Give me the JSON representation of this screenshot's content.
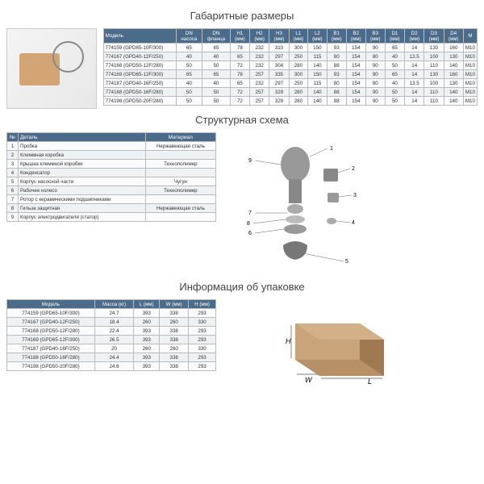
{
  "titles": {
    "dims": "Габаритные размеры",
    "struct": "Структурная схема",
    "pack": "Информация об упаковке"
  },
  "dimsTable": {
    "head": [
      "Модель",
      "DN насоса",
      "DN фланца",
      "H1 (мм)",
      "H2 (мм)",
      "H3 (мм)",
      "L1 (мм)",
      "L2 (мм)",
      "B1 (мм)",
      "B2 (мм)",
      "B3 (мм)",
      "D1 (мм)",
      "D2 (мм)",
      "D3 (мм)",
      "D4 (мм)",
      "M"
    ],
    "rows": [
      [
        "774159 (GPD65-10F/300)",
        "65",
        "65",
        "78",
        "232",
        "310",
        "300",
        "150",
        "93",
        "154",
        "90",
        "65",
        "14",
        "130",
        "160",
        "M10"
      ],
      [
        "774167 (GPD40-12F/250)",
        "40",
        "40",
        "65",
        "232",
        "297",
        "250",
        "115",
        "80",
        "154",
        "80",
        "40",
        "13.5",
        "100",
        "130",
        "M10"
      ],
      [
        "774168 (GPD50-12F/280)",
        "50",
        "50",
        "72",
        "232",
        "304",
        "280",
        "140",
        "88",
        "154",
        "90",
        "50",
        "14",
        "110",
        "140",
        "M10"
      ],
      [
        "774169 (GPD65-12F/300)",
        "65",
        "65",
        "78",
        "257",
        "335",
        "300",
        "150",
        "93",
        "154",
        "90",
        "65",
        "14",
        "130",
        "160",
        "M10"
      ],
      [
        "774187 (GPD40-16F/250)",
        "40",
        "40",
        "65",
        "232",
        "297",
        "250",
        "115",
        "80",
        "154",
        "80",
        "40",
        "13.5",
        "100",
        "130",
        "M10"
      ],
      [
        "774188 (GPD50-16F/280)",
        "50",
        "50",
        "72",
        "257",
        "329",
        "280",
        "140",
        "88",
        "154",
        "90",
        "50",
        "14",
        "110",
        "140",
        "M10"
      ],
      [
        "774198 (GPD50-20F/280)",
        "50",
        "50",
        "72",
        "257",
        "329",
        "280",
        "140",
        "88",
        "154",
        "90",
        "50",
        "14",
        "110",
        "140",
        "M10"
      ]
    ]
  },
  "structTable": {
    "head": [
      "№",
      "Деталь",
      "Материал"
    ],
    "rows": [
      [
        "1",
        "Пробка",
        "Нержавеющая сталь"
      ],
      [
        "2",
        "Клеммная коробка",
        ""
      ],
      [
        "3",
        "Крышка клеммной коробки",
        "Технополимер"
      ],
      [
        "4",
        "Конденсатор",
        ""
      ],
      [
        "5",
        "Корпус насосной части",
        "Чугун"
      ],
      [
        "6",
        "Рабочее колесо",
        "Технополимер"
      ],
      [
        "7",
        "Ротор с керамическими подшипниками",
        ""
      ],
      [
        "8",
        "Гильза защитная",
        "Нержавеющая сталь"
      ],
      [
        "9",
        "Корпус электродвигателя (статор)",
        ""
      ]
    ]
  },
  "packTable": {
    "head": [
      "Модель",
      "Масса (кг)",
      "L (мм)",
      "W (мм)",
      "H (мм)"
    ],
    "rows": [
      [
        "774159 (GPD65-10F/300)",
        "24.7",
        "393",
        "338",
        "293"
      ],
      [
        "774167 (GPD40-12F/250)",
        "18.4",
        "260",
        "260",
        "330"
      ],
      [
        "774168 (GPD50-12F/280)",
        "22.4",
        "393",
        "338",
        "293"
      ],
      [
        "774169 (GPD65-12F/300)",
        "26.5",
        "393",
        "338",
        "293"
      ],
      [
        "774187 (GPD40-16F/250)",
        "20",
        "260",
        "260",
        "330"
      ],
      [
        "774188 (GPD50-16F/280)",
        "24.4",
        "393",
        "338",
        "293"
      ],
      [
        "774198 (GPD50-20F/280)",
        "24.6",
        "393",
        "338",
        "293"
      ]
    ]
  },
  "labels": {
    "H": "H",
    "W": "W",
    "L": "L"
  },
  "callouts": [
    "1",
    "2",
    "3",
    "4",
    "5",
    "6",
    "7",
    "8",
    "9"
  ]
}
